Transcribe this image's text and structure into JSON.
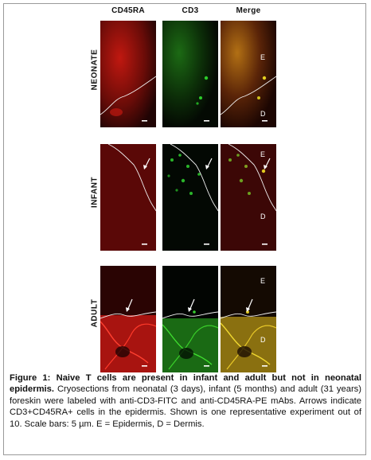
{
  "columns": [
    "CD45RA",
    "CD3",
    "Merge"
  ],
  "rows": [
    "NEONATE",
    "INFANT",
    "ADULT"
  ],
  "region_labels": {
    "epidermis": "E",
    "dermis": "D"
  },
  "caption": {
    "title": "Figure 1: Naive T cells are present in infant and adult but not in neonatal epidermis.",
    "body": " Cryosections from neonatal (3 days), infant (5 months) and adult (31 years) foreskin were labeled with anti-CD3-FITC and anti-CD45RA-PE mAbs. Arrows indicate CD3+CD45RA+ cells in the epidermis. Shown is one representative experiment out of 10. Scale bars: 5 µm. E = Epidermis, D = Dermis."
  },
  "colors": {
    "red_stain": "#d01010",
    "green_stain": "#18b018",
    "merge_yellow": "#d8c010",
    "background": "#000000"
  }
}
